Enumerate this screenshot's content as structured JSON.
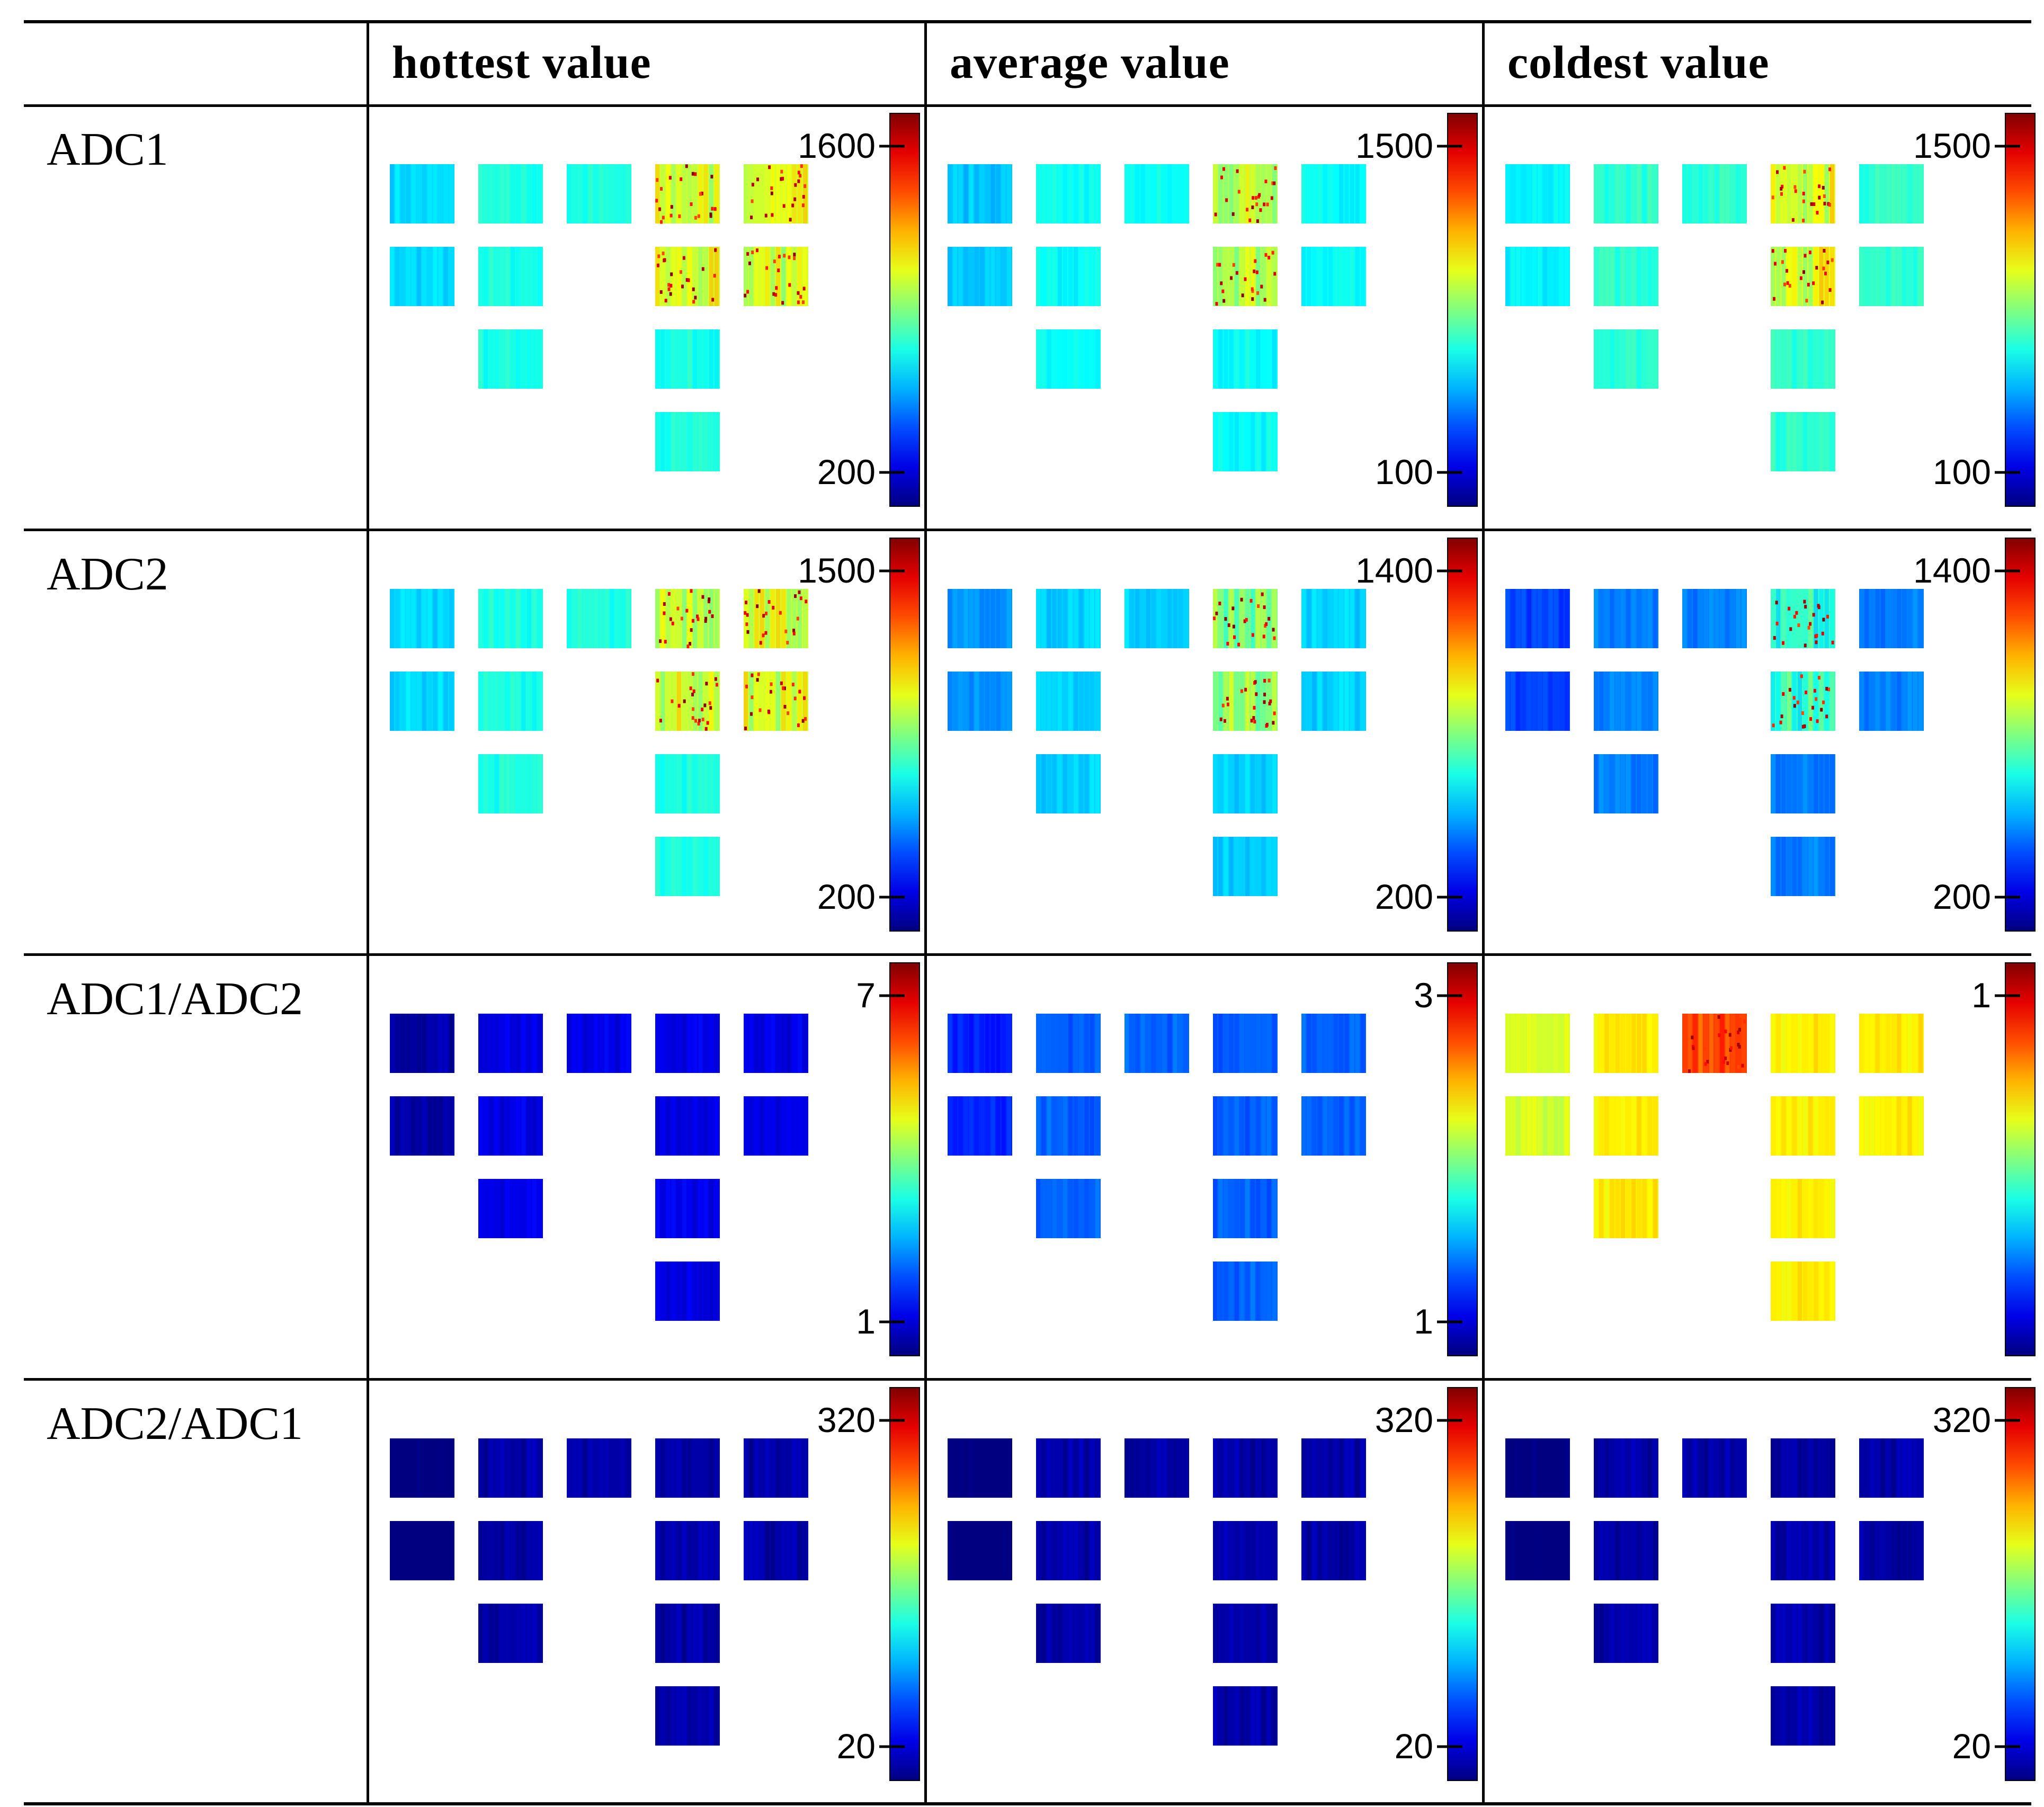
{
  "table": {
    "column_headers": [
      "hottest value",
      "average value",
      "coldest value"
    ],
    "rows": [
      {
        "label": "ADC1",
        "panels": [
          {
            "max_label": "1600",
            "min_label": "200",
            "mean": 0.4,
            "hot": [
              3,
              4
            ]
          },
          {
            "max_label": "1500",
            "min_label": "100",
            "mean": 0.38,
            "hot": [
              3
            ]
          },
          {
            "max_label": "1500",
            "min_label": "100",
            "mean": 0.42,
            "hot": [
              3
            ]
          }
        ]
      },
      {
        "label": "ADC2",
        "panels": [
          {
            "max_label": "1500",
            "min_label": "200",
            "mean": 0.4,
            "hot": [
              3,
              4
            ]
          },
          {
            "max_label": "1400",
            "min_label": "200",
            "mean": 0.33,
            "hot": [
              3
            ]
          },
          {
            "max_label": "1400",
            "min_label": "200",
            "mean": 0.25,
            "hot": [
              3
            ]
          }
        ]
      },
      {
        "label": "ADC1/ADC2",
        "panels": [
          {
            "max_label": "7",
            "min_label": "1",
            "mean": 0.1,
            "hot": []
          },
          {
            "max_label": "3",
            "min_label": "1",
            "mean": 0.22,
            "hot": []
          },
          {
            "max_label": "1",
            "min_label": "",
            "mean": 0.64,
            "hot": [
              2
            ]
          }
        ]
      },
      {
        "label": "ADC2/ADC1",
        "panels": [
          {
            "max_label": "320",
            "min_label": "20",
            "mean": 0.04,
            "hot": []
          },
          {
            "max_label": "320",
            "min_label": "20",
            "mean": 0.04,
            "hot": []
          },
          {
            "max_label": "320",
            "min_label": "20",
            "mean": 0.04,
            "hot": []
          }
        ]
      }
    ]
  },
  "colormap": "jet"
}
